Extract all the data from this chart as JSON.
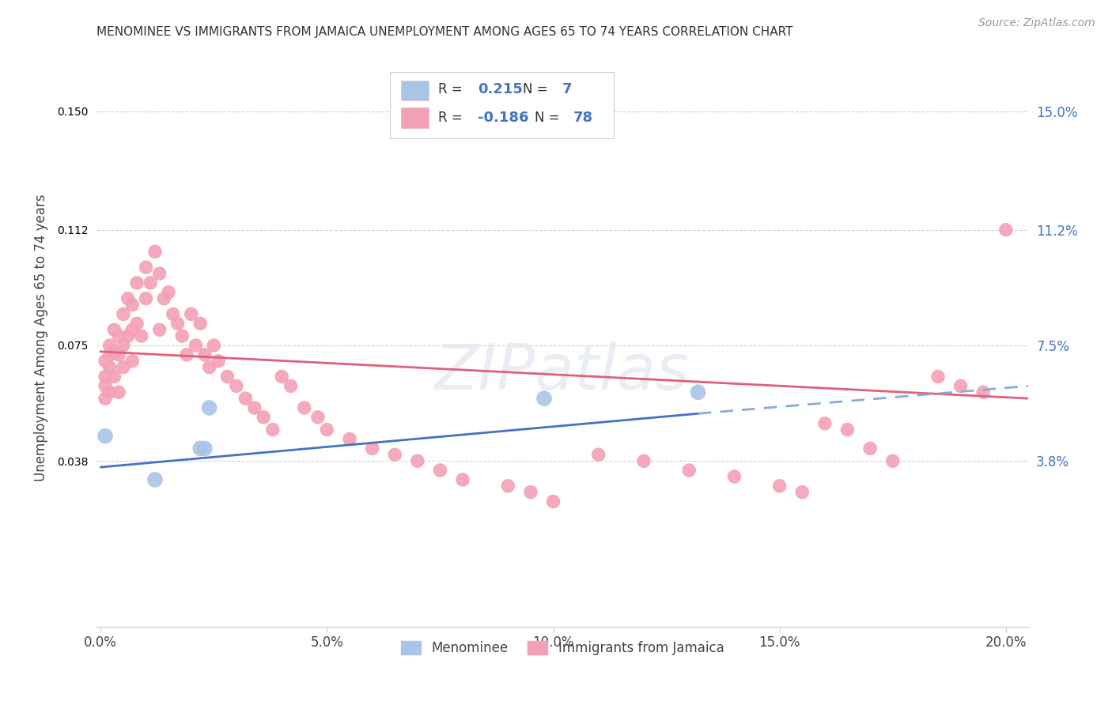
{
  "title": "MENOMINEE VS IMMIGRANTS FROM JAMAICA UNEMPLOYMENT AMONG AGES 65 TO 74 YEARS CORRELATION CHART",
  "source": "Source: ZipAtlas.com",
  "ylabel": "Unemployment Among Ages 65 to 74 years",
  "xlabel_ticks": [
    "0.0%",
    "5.0%",
    "10.0%",
    "15.0%",
    "20.0%"
  ],
  "xlabel_vals": [
    0.0,
    0.05,
    0.1,
    0.15,
    0.2
  ],
  "ytick_labels": [
    "3.8%",
    "7.5%",
    "11.2%",
    "15.0%"
  ],
  "ytick_vals": [
    0.038,
    0.075,
    0.112,
    0.15
  ],
  "xlim": [
    -0.001,
    0.205
  ],
  "ylim": [
    -0.015,
    0.17
  ],
  "menominee_color": "#aac4e8",
  "jamaica_color": "#f4a0b5",
  "trendline_menominee_solid_color": "#4472c4",
  "trendline_menominee_dash_color": "#88aad8",
  "trendline_jamaica_color": "#e0607a",
  "legend_R_menominee": "0.215",
  "legend_N_menominee": "7",
  "legend_R_jamaica": "-0.186",
  "legend_N_jamaica": "78",
  "menominee_x": [
    0.001,
    0.012,
    0.022,
    0.023,
    0.024,
    0.098,
    0.132
  ],
  "menominee_y": [
    0.046,
    0.032,
    0.042,
    0.042,
    0.055,
    0.058,
    0.06
  ],
  "jamaica_x": [
    0.001,
    0.001,
    0.001,
    0.001,
    0.002,
    0.002,
    0.002,
    0.002,
    0.003,
    0.003,
    0.003,
    0.004,
    0.004,
    0.004,
    0.005,
    0.005,
    0.005,
    0.006,
    0.006,
    0.007,
    0.007,
    0.007,
    0.008,
    0.008,
    0.009,
    0.01,
    0.01,
    0.011,
    0.012,
    0.013,
    0.013,
    0.014,
    0.015,
    0.016,
    0.017,
    0.018,
    0.019,
    0.02,
    0.021,
    0.022,
    0.023,
    0.024,
    0.025,
    0.026,
    0.028,
    0.03,
    0.032,
    0.034,
    0.036,
    0.038,
    0.04,
    0.042,
    0.045,
    0.048,
    0.05,
    0.055,
    0.06,
    0.065,
    0.07,
    0.075,
    0.08,
    0.09,
    0.095,
    0.1,
    0.11,
    0.12,
    0.13,
    0.14,
    0.15,
    0.155,
    0.16,
    0.165,
    0.17,
    0.175,
    0.185,
    0.19,
    0.195,
    0.2
  ],
  "jamaica_y": [
    0.07,
    0.065,
    0.062,
    0.058,
    0.075,
    0.072,
    0.068,
    0.06,
    0.08,
    0.073,
    0.065,
    0.078,
    0.072,
    0.06,
    0.085,
    0.075,
    0.068,
    0.09,
    0.078,
    0.088,
    0.08,
    0.07,
    0.095,
    0.082,
    0.078,
    0.1,
    0.09,
    0.095,
    0.105,
    0.098,
    0.08,
    0.09,
    0.092,
    0.085,
    0.082,
    0.078,
    0.072,
    0.085,
    0.075,
    0.082,
    0.072,
    0.068,
    0.075,
    0.07,
    0.065,
    0.062,
    0.058,
    0.055,
    0.052,
    0.048,
    0.065,
    0.062,
    0.055,
    0.052,
    0.048,
    0.045,
    0.042,
    0.04,
    0.038,
    0.035,
    0.032,
    0.03,
    0.028,
    0.025,
    0.04,
    0.038,
    0.035,
    0.033,
    0.03,
    0.028,
    0.05,
    0.048,
    0.042,
    0.038,
    0.065,
    0.062,
    0.06,
    0.112
  ],
  "watermark": "ZIPatlas",
  "background_color": "#ffffff",
  "grid_color": "#d0d0d0",
  "menominee_trendline_y_at_0": 0.036,
  "menominee_trendline_y_at_020": 0.062,
  "jamaica_trendline_y_at_0": 0.073,
  "jamaica_trendline_y_at_020": 0.058
}
